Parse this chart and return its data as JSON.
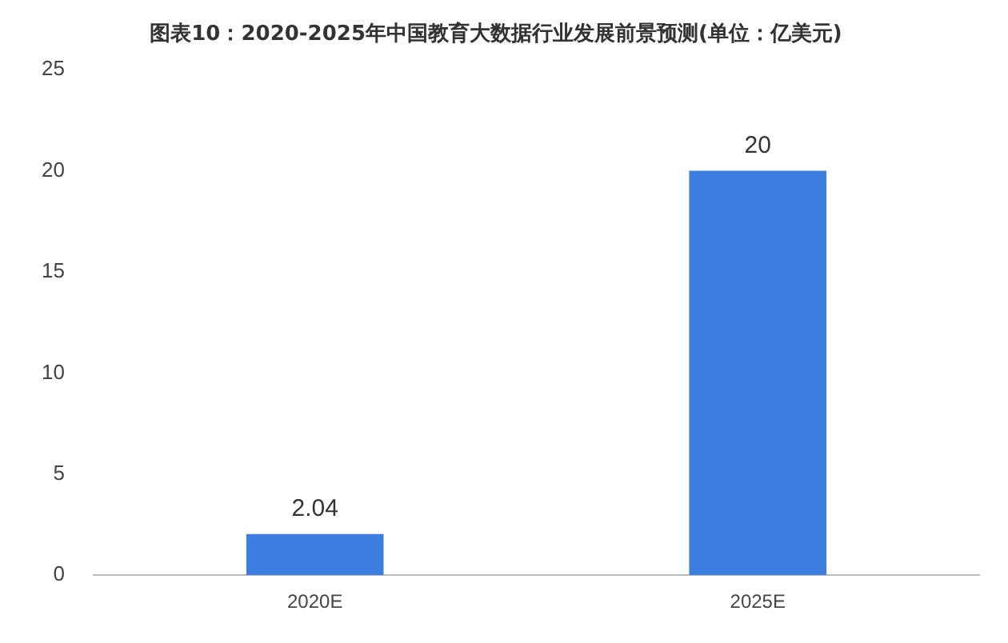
{
  "chart_data": {
    "type": "bar",
    "title": "图表10：2020-2025年中国教育大数据行业发展前景预测(单位：亿美元)",
    "categories": [
      "2020E",
      "2025E"
    ],
    "values": [
      2.04,
      20
    ],
    "color": "#3d7fe0",
    "ylim": [
      0,
      25
    ],
    "yticks": [
      0,
      5,
      10,
      15,
      20,
      25
    ],
    "grid": false,
    "legend": false,
    "data_labels": true
  }
}
